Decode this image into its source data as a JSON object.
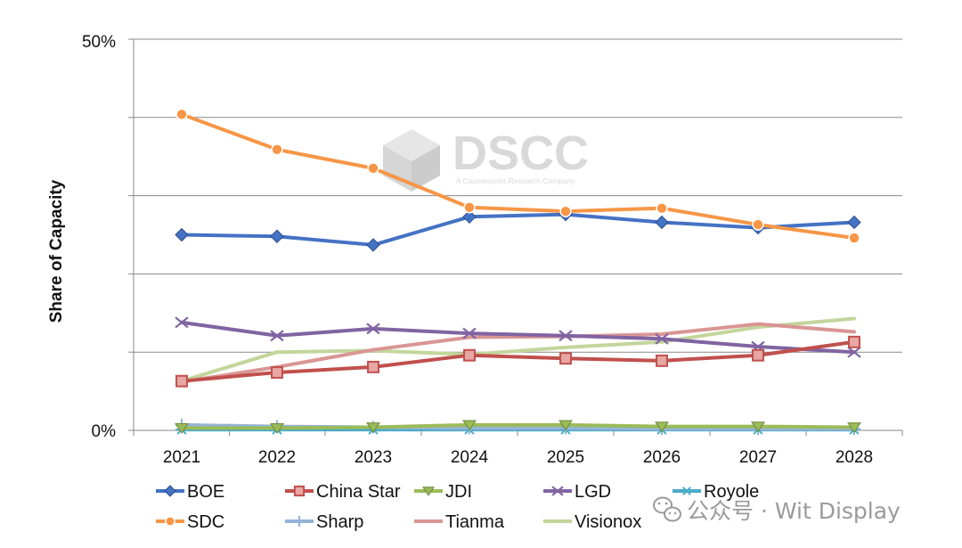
{
  "chart_data": {
    "type": "line",
    "title": "",
    "xlabel": "",
    "ylabel": "Share of Capacity",
    "ylim": [
      0,
      50
    ],
    "ytick_labels": [
      "50%",
      "0%"
    ],
    "x": [
      "2021",
      "2022",
      "2023",
      "2024",
      "2025",
      "2026",
      "2027",
      "2028"
    ],
    "grid": true,
    "legend_position": "bottom",
    "series": [
      {
        "name": "BOE",
        "color": "#4472c4",
        "marker": "diamond",
        "values": [
          25.0,
          24.8,
          23.7,
          27.3,
          27.6,
          26.6,
          25.9,
          26.6
        ]
      },
      {
        "name": "China Star",
        "color": "#c0504d",
        "marker": "square",
        "values": [
          6.3,
          7.4,
          8.1,
          9.6,
          9.2,
          8.9,
          9.6,
          11.3
        ]
      },
      {
        "name": "JDI",
        "color": "#9bbb59",
        "marker": "triangle",
        "values": [
          0.3,
          0.3,
          0.4,
          0.7,
          0.7,
          0.5,
          0.5,
          0.4
        ]
      },
      {
        "name": "LGD",
        "color": "#8064a2",
        "marker": "x",
        "values": [
          13.8,
          12.1,
          13.0,
          12.4,
          12.1,
          11.7,
          10.7,
          10.0
        ]
      },
      {
        "name": "Royole",
        "color": "#4bacc6",
        "marker": "star",
        "values": [
          0.1,
          0.1,
          0.1,
          0.1,
          0.1,
          0.1,
          0.1,
          0.1
        ]
      },
      {
        "name": "SDC",
        "color": "#f79646",
        "marker": "circle",
        "values": [
          40.4,
          35.9,
          33.5,
          28.5,
          28.0,
          28.4,
          26.3,
          24.6
        ]
      },
      {
        "name": "Sharp",
        "color": "#95b3d7",
        "marker": "plus",
        "values": [
          0.7,
          0.5,
          0.4,
          0.3,
          0.3,
          0.2,
          0.2,
          0.2
        ]
      },
      {
        "name": "Tianma",
        "color": "#d99694",
        "marker": "none",
        "values": [
          6.2,
          8.1,
          10.3,
          11.9,
          12.0,
          12.3,
          13.6,
          12.6
        ]
      },
      {
        "name": "Visionox",
        "color": "#c3d69b",
        "marker": "none",
        "values": [
          6.3,
          10.0,
          10.2,
          9.7,
          10.6,
          11.3,
          13.2,
          14.3
        ]
      }
    ]
  },
  "watermark": {
    "logo_text": "DSCC",
    "tagline": "A Counterpoint Research Company"
  },
  "brand_overlay": {
    "text": "公众号 · Wit Display"
  }
}
